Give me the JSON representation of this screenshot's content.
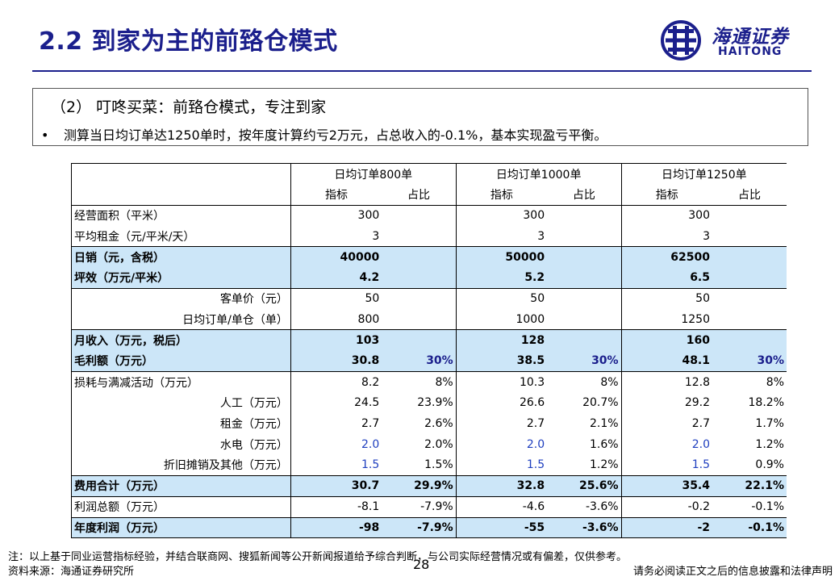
{
  "title": "2.2 到家为主的前臵仓模式",
  "logo": {
    "cn": "海通证券",
    "en": "HAITONG"
  },
  "box": {
    "heading": "（2） 叮咚买菜：前臵仓模式，专注到家",
    "bullet": "•",
    "body": "测算当日均订单达1250单时，按年度计算约亏2万元，占总收入的-0.1%，基本实现盈亏平衡。"
  },
  "table": {
    "groups": [
      "日均订单800单",
      "日均订单1000单",
      "日均订单1250单"
    ],
    "subheaders": [
      "指标",
      "占比",
      "指标",
      "占比",
      "指标",
      "占比"
    ],
    "rows": [
      {
        "label": "经营面积（平米）",
        "cells": [
          "300",
          "",
          "300",
          "",
          "300",
          ""
        ]
      },
      {
        "label": "平均租金（元/平米/天）",
        "cells": [
          "3",
          "",
          "3",
          "",
          "3",
          ""
        ]
      },
      {
        "label": "日销（元，含税）",
        "cells": [
          "40000",
          "",
          "50000",
          "",
          "62500",
          ""
        ]
      },
      {
        "label": "坪效（万元/平米）",
        "cells": [
          "4.2",
          "",
          "5.2",
          "",
          "6.5",
          ""
        ]
      },
      {
        "label": "客单价（元）",
        "cells": [
          "50",
          "",
          "50",
          "",
          "50",
          ""
        ]
      },
      {
        "label": "日均订单/单仓（单）",
        "cells": [
          "800",
          "",
          "1000",
          "",
          "1250",
          ""
        ]
      },
      {
        "label": "月收入（万元，税后）",
        "cells": [
          "103",
          "",
          "128",
          "",
          "160",
          ""
        ]
      },
      {
        "label": "毛利额（万元）",
        "cells": [
          "30.8",
          "30%",
          "38.5",
          "30%",
          "48.1",
          "30%"
        ]
      },
      {
        "label": "损耗与满减活动（万元）",
        "cells": [
          "8.2",
          "8%",
          "10.3",
          "8%",
          "12.8",
          "8%"
        ]
      },
      {
        "label": "人工（万元）",
        "cells": [
          "24.5",
          "23.9%",
          "26.6",
          "20.7%",
          "29.2",
          "18.2%"
        ]
      },
      {
        "label": "租金（万元）",
        "cells": [
          "2.7",
          "2.6%",
          "2.7",
          "2.1%",
          "2.7",
          "1.7%"
        ]
      },
      {
        "label": "水电（万元）",
        "cells": [
          "2.0",
          "2.0%",
          "2.0",
          "1.6%",
          "2.0",
          "1.2%"
        ]
      },
      {
        "label": "折旧摊销及其他（万元）",
        "cells": [
          "1.5",
          "1.5%",
          "1.5",
          "1.2%",
          "1.5",
          "0.9%"
        ]
      },
      {
        "label": "费用合计（万元）",
        "cells": [
          "30.7",
          "29.9%",
          "32.8",
          "25.6%",
          "35.4",
          "22.1%"
        ]
      },
      {
        "label": "利润总额（万元）",
        "cells": [
          "-8.1",
          "-7.9%",
          "-4.6",
          "-3.6%",
          "-0.2",
          "-0.1%"
        ]
      },
      {
        "label": "年度利润（万元）",
        "cells": [
          "-98",
          "-7.9%",
          "-55",
          "-3.6%",
          "-2",
          "-0.1%"
        ]
      }
    ]
  },
  "footnote": "注：以上基于同业运营指标经验，并结合联商网、搜狐新闻等公开新闻报道给予综合判断，与公司实际经营情况或有偏差，仅供参考。",
  "source": "资料来源：海通证券研究所",
  "page_number": "28",
  "disclaimer": "请务必阅读正文之后的信息披露和法律声明",
  "colors": {
    "brand": "#1b1f8c",
    "highlight_row": "#cce6f8",
    "blue_value": "#1f3fbf"
  }
}
